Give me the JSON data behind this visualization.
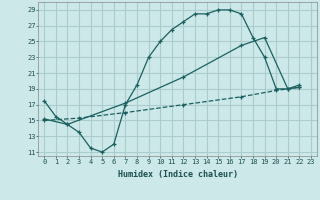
{
  "xlabel": "Humidex (Indice chaleur)",
  "background_color": "#cce8e8",
  "grid_color": "#aacccc",
  "line_color": "#1a6060",
  "x_ticks": [
    0,
    1,
    2,
    3,
    4,
    5,
    6,
    7,
    8,
    9,
    10,
    11,
    12,
    13,
    14,
    15,
    16,
    17,
    18,
    19,
    20,
    21,
    22,
    23
  ],
  "y_ticks": [
    11,
    13,
    15,
    17,
    19,
    21,
    23,
    25,
    27,
    29
  ],
  "xlim": [
    -0.5,
    23.5
  ],
  "ylim": [
    10.5,
    30.0
  ],
  "line1_x": [
    0,
    1,
    2,
    3,
    4,
    5,
    6,
    7,
    8,
    9,
    10,
    11,
    12,
    13,
    14,
    15,
    16,
    17,
    18,
    19,
    20,
    21,
    22
  ],
  "line1_y": [
    17.5,
    15.5,
    14.5,
    13.5,
    11.5,
    11.0,
    12.0,
    17.0,
    19.5,
    23.0,
    25.0,
    26.5,
    27.5,
    28.5,
    28.5,
    29.0,
    29.0,
    28.5,
    25.5,
    23.0,
    19.0,
    19.0,
    19.5
  ],
  "line2_x": [
    0,
    2,
    7,
    12,
    17,
    19,
    21,
    22
  ],
  "line2_y": [
    15.2,
    14.5,
    17.2,
    20.5,
    24.5,
    25.5,
    19.0,
    19.2
  ],
  "line3_x": [
    0,
    3,
    7,
    12,
    17,
    20,
    22
  ],
  "line3_y": [
    15.0,
    15.3,
    16.0,
    17.0,
    18.0,
    18.8,
    19.2
  ]
}
